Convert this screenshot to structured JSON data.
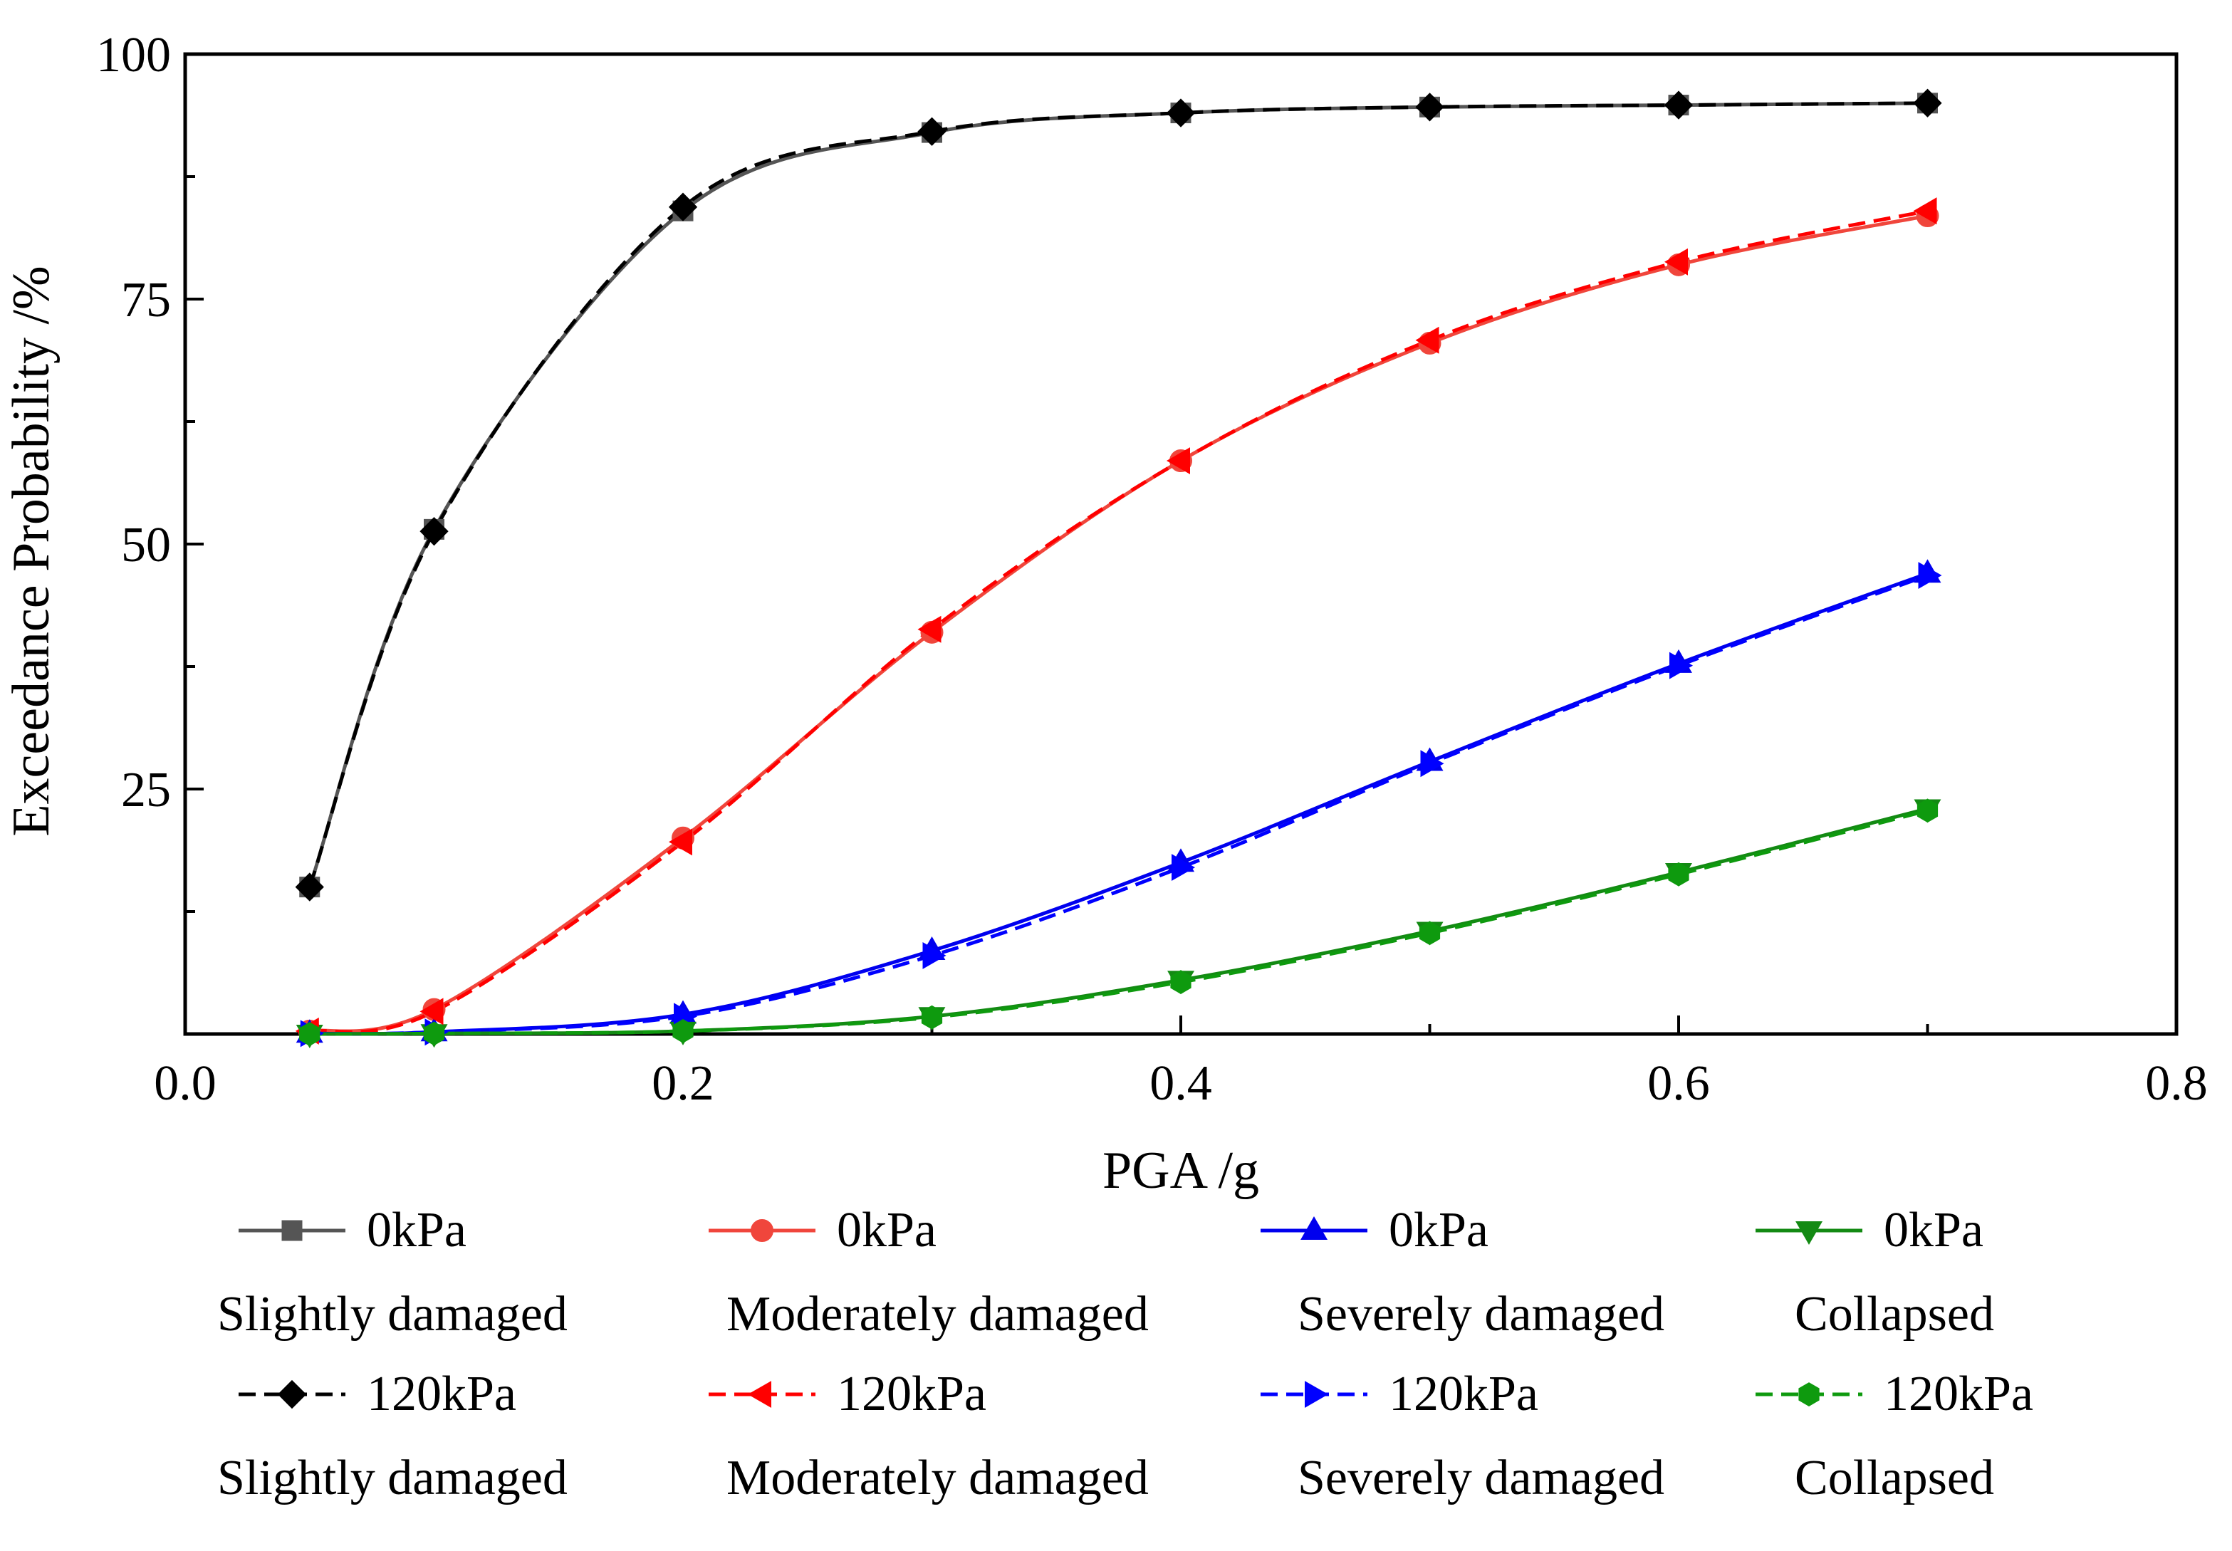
{
  "chart_data": {
    "type": "line",
    "title": "",
    "xlabel": "PGA /g",
    "ylabel": "Exceedance Probability /%",
    "xlim": [
      0.0,
      0.8
    ],
    "ylim": [
      0,
      100
    ],
    "xticks": [
      0.0,
      0.2,
      0.4,
      0.6,
      0.8
    ],
    "xtick_labels": [
      "0.0",
      "0.2",
      "0.4",
      "0.6",
      "0.8"
    ],
    "yticks": [
      25,
      50,
      75,
      100
    ],
    "ytick_labels": [
      "25",
      "50",
      "75",
      "100"
    ],
    "grid": false,
    "legend_position": "bottom",
    "x": [
      0.05,
      0.1,
      0.2,
      0.3,
      0.4,
      0.5,
      0.6,
      0.7
    ],
    "series": [
      {
        "name": "0kPa",
        "state": "Slightly damaged",
        "color": "#555555",
        "dash": "solid",
        "marker": "square",
        "values": [
          15.0,
          51.5,
          84.0,
          92.0,
          94.0,
          94.6,
          94.8,
          95.0
        ]
      },
      {
        "name": "0kPa",
        "state": "Moderately damaged",
        "color": "#f0463c",
        "dash": "solid",
        "marker": "circle",
        "values": [
          0.3,
          2.5,
          20.0,
          41.0,
          58.5,
          70.5,
          78.5,
          83.5
        ]
      },
      {
        "name": "0kPa",
        "state": "Severely damaged",
        "color": "#0000ee",
        "dash": "solid",
        "marker": "triangle-up",
        "values": [
          0.05,
          0.2,
          2.0,
          8.5,
          17.5,
          27.8,
          37.8,
          47.0
        ]
      },
      {
        "name": "0kPa",
        "state": "Collapsed",
        "color": "#138a13",
        "dash": "solid",
        "marker": "triangle-down",
        "values": [
          0.0,
          0.05,
          0.3,
          1.8,
          5.5,
          10.5,
          16.5,
          23.0
        ]
      },
      {
        "name": "120kPa",
        "state": "Slightly damaged",
        "color": "#000000",
        "dash": "dashed",
        "marker": "diamond",
        "values": [
          15.0,
          51.3,
          84.4,
          92.1,
          94.0,
          94.6,
          94.8,
          95.0
        ]
      },
      {
        "name": "120kPa",
        "state": "Moderately damaged",
        "color": "#ff0000",
        "dash": "dashed",
        "marker": "triangle-left",
        "values": [
          0.3,
          2.3,
          19.6,
          41.3,
          58.5,
          70.8,
          78.8,
          84.0
        ]
      },
      {
        "name": "120kPa",
        "state": "Severely damaged",
        "color": "#0000ff",
        "dash": "dashed",
        "marker": "triangle-right",
        "values": [
          0.05,
          0.2,
          1.8,
          8.0,
          17.0,
          27.6,
          37.6,
          46.8
        ]
      },
      {
        "name": "120kPa",
        "state": "Collapsed",
        "color": "#0e9a0e",
        "dash": "dashed",
        "marker": "hexagon",
        "values": [
          0.0,
          0.05,
          0.3,
          1.7,
          5.3,
          10.3,
          16.3,
          22.8
        ]
      }
    ]
  }
}
